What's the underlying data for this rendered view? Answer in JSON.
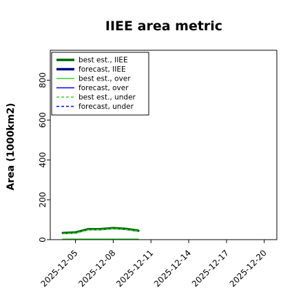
{
  "chart_data": {
    "type": "line",
    "title": "IIEE area metric",
    "ylabel": "Area (1000km2)",
    "xlabel": "",
    "ylim": [
      0,
      950
    ],
    "yticks": [
      0,
      200,
      400,
      600,
      800
    ],
    "x_range": [
      "2025-12-03",
      "2025-12-21"
    ],
    "xticks": [
      {
        "date": "2025-12-05",
        "label": "2025-12-05",
        "color": "#000000"
      },
      {
        "date": "2025-12-08",
        "label": "2025-12-08",
        "color": "#000000"
      },
      {
        "date": "2025-12-11",
        "label": "2025-12-11",
        "color": "#228b22"
      },
      {
        "date": "2025-12-14",
        "label": "2025-12-14",
        "color": "#000000"
      },
      {
        "date": "2025-12-17",
        "label": "2025-12-17",
        "color": "#000000"
      },
      {
        "date": "2025-12-20",
        "label": "2025-12-20",
        "color": "#000000"
      }
    ],
    "legend": {
      "placement": "top-left",
      "entries": [
        {
          "label": "best est., IIEE",
          "color": "#006400",
          "style": "solid",
          "width": "thick"
        },
        {
          "label": "forecast, IIEE",
          "color": "#00008b",
          "style": "solid",
          "width": "thick"
        },
        {
          "label": "best est., over",
          "color": "#32cd32",
          "style": "solid",
          "width": "thin"
        },
        {
          "label": "forecast, over",
          "color": "#0000ff",
          "style": "solid",
          "width": "thin"
        },
        {
          "label": "best est., under",
          "color": "#32cd32",
          "style": "dashed",
          "width": "thin"
        },
        {
          "label": "forecast, under",
          "color": "#0000ff",
          "style": "dashed",
          "width": "thin"
        }
      ]
    },
    "series": [
      {
        "key": "best_est_iiee",
        "color": "#006400",
        "style": "solid",
        "width": "thick",
        "x": [
          "2025-12-04",
          "2025-12-05",
          "2025-12-06",
          "2025-12-07",
          "2025-12-08",
          "2025-12-09",
          "2025-12-10"
        ],
        "values": [
          33,
          36,
          52,
          53,
          58,
          54,
          45
        ]
      },
      {
        "key": "best_est_over",
        "color": "#32cd32",
        "style": "solid",
        "width": "thin",
        "x": [
          "2025-12-04",
          "2025-12-05",
          "2025-12-06",
          "2025-12-07",
          "2025-12-08",
          "2025-12-09",
          "2025-12-10"
        ],
        "values": [
          3,
          3,
          3,
          3,
          3,
          3,
          3
        ]
      },
      {
        "key": "best_est_under",
        "color": "#32cd32",
        "style": "dashed",
        "width": "thin",
        "x": [
          "2025-12-04",
          "2025-12-05",
          "2025-12-06",
          "2025-12-07",
          "2025-12-08",
          "2025-12-09",
          "2025-12-10"
        ],
        "values": [
          30,
          33,
          49,
          50,
          55,
          51,
          42
        ]
      }
    ]
  }
}
